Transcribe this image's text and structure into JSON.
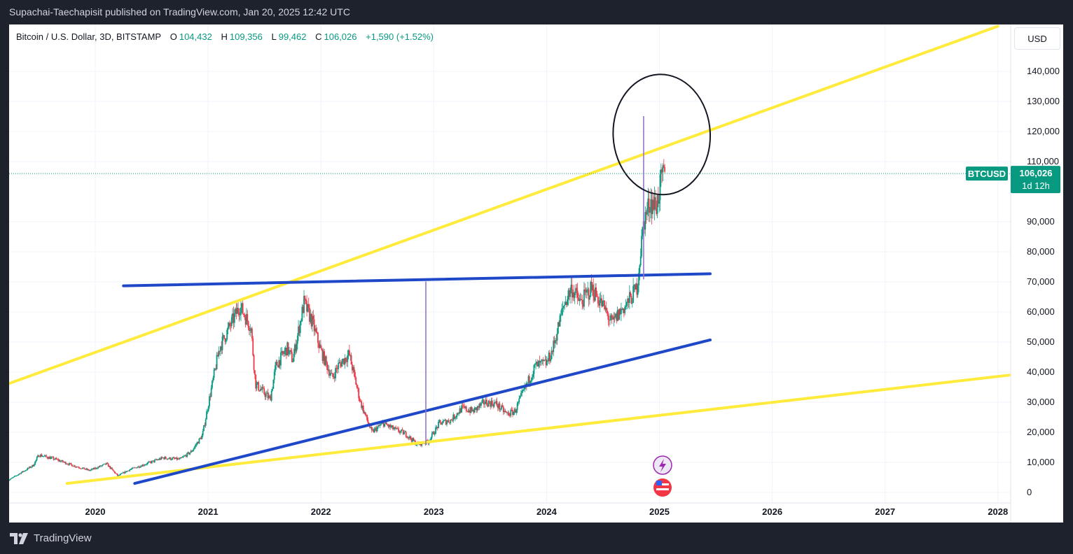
{
  "header": {
    "published_line": "Supachai-Taechapisit published on TradingView.com, Jan 20, 2025 12:42 UTC"
  },
  "symbol": {
    "name": "Bitcoin / U.S. Dollar, 3D, BITSTAMP",
    "open_label": "O",
    "open": "104,432",
    "high_label": "H",
    "high": "109,356",
    "low_label": "L",
    "low": "99,462",
    "close_label": "C",
    "close": "106,026",
    "change": "+1,590 (+1.52%)"
  },
  "currency_button": "USD",
  "price_tag": {
    "ticker": "BTCUSD",
    "price": "106,026",
    "countdown": "1d 12h"
  },
  "footer": {
    "brand": "TradingView",
    "logo_icon": "tradingview-logo-icon"
  },
  "colors": {
    "background": "#1e222d",
    "chart_bg": "#ffffff",
    "up": "#089981",
    "down": "#f23645",
    "yellow_line": "#ffeb3b",
    "blue_line": "#1e48c8",
    "purple_line": "#9575cd"
  },
  "chart_data": {
    "type": "candlestick",
    "title": "",
    "xlabel": "",
    "ylabel": "",
    "x_ticks": [
      "2020",
      "2021",
      "2022",
      "2023",
      "2024",
      "2025",
      "2026",
      "2027",
      "2028"
    ],
    "y_ticks": [
      0,
      10000,
      20000,
      30000,
      40000,
      50000,
      60000,
      70000,
      80000,
      90000,
      110000,
      120000,
      130000,
      140000
    ],
    "y_tick_labels": [
      "0",
      "10,000",
      "20,000",
      "30,000",
      "40,000",
      "50,000",
      "60,000",
      "70,000",
      "80,000",
      "90,000",
      "110,000",
      "120,000",
      "130,000",
      "140,000"
    ],
    "ylim": [
      0,
      145000
    ],
    "xlim": [
      2019.22,
      2028.1
    ],
    "last_price": 106026,
    "price_path": [
      [
        2019.22,
        3800
      ],
      [
        2019.45,
        9000
      ],
      [
        2019.5,
        12500
      ],
      [
        2019.65,
        11000
      ],
      [
        2019.8,
        9000
      ],
      [
        2019.95,
        7300
      ],
      [
        2020.1,
        9500
      ],
      [
        2020.2,
        5500
      ],
      [
        2020.3,
        7500
      ],
      [
        2020.45,
        9500
      ],
      [
        2020.6,
        11500
      ],
      [
        2020.75,
        11000
      ],
      [
        2020.85,
        13500
      ],
      [
        2020.95,
        19000
      ],
      [
        2021.0,
        29000
      ],
      [
        2021.1,
        48000
      ],
      [
        2021.28,
        62000
      ],
      [
        2021.38,
        55000
      ],
      [
        2021.42,
        36000
      ],
      [
        2021.5,
        33000
      ],
      [
        2021.55,
        31000
      ],
      [
        2021.6,
        42000
      ],
      [
        2021.7,
        48000
      ],
      [
        2021.75,
        44000
      ],
      [
        2021.85,
        63000
      ],
      [
        2021.92,
        57000
      ],
      [
        2022.0,
        47000
      ],
      [
        2022.1,
        38000
      ],
      [
        2022.15,
        42000
      ],
      [
        2022.25,
        46000
      ],
      [
        2022.35,
        30000
      ],
      [
        2022.45,
        20000
      ],
      [
        2022.55,
        23000
      ],
      [
        2022.65,
        21000
      ],
      [
        2022.75,
        19500
      ],
      [
        2022.85,
        16000
      ],
      [
        2022.95,
        16800
      ],
      [
        2023.05,
        23000
      ],
      [
        2023.15,
        24000
      ],
      [
        2023.25,
        28000
      ],
      [
        2023.35,
        27000
      ],
      [
        2023.45,
        30000
      ],
      [
        2023.55,
        29500
      ],
      [
        2023.65,
        26000
      ],
      [
        2023.72,
        27000
      ],
      [
        2023.8,
        34000
      ],
      [
        2023.9,
        42000
      ],
      [
        2024.0,
        43000
      ],
      [
        2024.05,
        47000
      ],
      [
        2024.15,
        62000
      ],
      [
        2024.22,
        68000
      ],
      [
        2024.3,
        63000
      ],
      [
        2024.4,
        68000
      ],
      [
        2024.5,
        62000
      ],
      [
        2024.58,
        56000
      ],
      [
        2024.65,
        60000
      ],
      [
        2024.72,
        63000
      ],
      [
        2024.8,
        68000
      ],
      [
        2024.86,
        90000
      ],
      [
        2024.92,
        97000
      ],
      [
        2024.97,
        95000
      ],
      [
        2025.02,
        104000
      ],
      [
        2025.05,
        106026
      ]
    ],
    "annotations": [
      {
        "type": "trendline",
        "color": "yellow",
        "points": [
          [
            2019.22,
            36000
          ],
          [
            2028.0,
            155000
          ]
        ]
      },
      {
        "type": "trendline",
        "color": "yellow",
        "points": [
          [
            2019.75,
            3000
          ],
          [
            2028.1,
            39000
          ]
        ]
      },
      {
        "type": "trendline",
        "color": "blue",
        "points": [
          [
            2020.25,
            68700
          ],
          [
            2025.45,
            72700
          ]
        ]
      },
      {
        "type": "trendline",
        "color": "blue",
        "points": [
          [
            2020.35,
            3000
          ],
          [
            2025.45,
            50700
          ]
        ]
      },
      {
        "type": "vertical_line",
        "color": "purple",
        "points": [
          [
            2022.93,
            16000
          ],
          [
            2022.93,
            70000
          ]
        ]
      },
      {
        "type": "vertical_line",
        "color": "purple",
        "points": [
          [
            2024.86,
            71000
          ],
          [
            2024.86,
            125000
          ]
        ]
      },
      {
        "type": "ellipse",
        "color": "black",
        "center": [
          2025.02,
          119000
        ],
        "radius_x": 0.43,
        "radius_y": 20000
      }
    ]
  }
}
